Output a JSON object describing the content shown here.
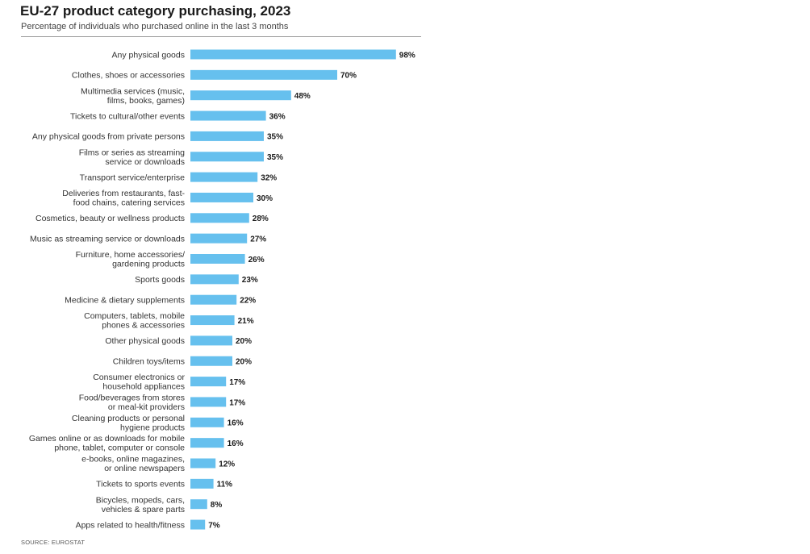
{
  "title": "EU-27 product category purchasing, 2023",
  "subtitle": "Percentage of individuals who purchased online in the last 3 months",
  "source": "SOURCE: EUROSTAT",
  "colors": {
    "bar": "#66c0ee",
    "label": "#333333",
    "value": "#1a1a1a"
  },
  "chart_data": {
    "type": "bar",
    "orientation": "horizontal",
    "unit": "%",
    "xlim": [
      0,
      100
    ],
    "grid": false,
    "categories": [
      [
        "Any physical goods"
      ],
      [
        "Clothes, shoes or accessories"
      ],
      [
        "Multimedia services (music,",
        "films, books, games)"
      ],
      [
        "Tickets to cultural/other events"
      ],
      [
        "Any physical goods from private persons"
      ],
      [
        "Films or series as streaming",
        "service or downloads"
      ],
      [
        "Transport service/enterprise"
      ],
      [
        "Deliveries from restaurants, fast-",
        "food chains, catering services"
      ],
      [
        "Cosmetics, beauty or wellness products"
      ],
      [
        "Music as streaming service or downloads"
      ],
      [
        "Furniture, home accessories/",
        "gardening products"
      ],
      [
        "Sports goods"
      ],
      [
        "Medicine & dietary supplements"
      ],
      [
        "Computers, tablets, mobile",
        "phones & accessories"
      ],
      [
        "Other physical goods"
      ],
      [
        "Children toys/items"
      ],
      [
        "Consumer electronics or",
        "household appliances"
      ],
      [
        "Food/beverages from stores",
        "or meal-kit providers"
      ],
      [
        "Cleaning products or personal",
        "hygiene products"
      ],
      [
        "Games online or as downloads for mobile",
        "phone, tablet, computer or console"
      ],
      [
        "e-books, online magazines,",
        "or online newspapers"
      ],
      [
        "Tickets to sports events"
      ],
      [
        "Bicycles, mopeds, cars,",
        "vehicles & spare parts"
      ],
      [
        "Apps related to health/fitness"
      ]
    ],
    "values": [
      98,
      70,
      48,
      36,
      35,
      35,
      32,
      30,
      28,
      27,
      26,
      23,
      22,
      21,
      20,
      20,
      17,
      17,
      16,
      16,
      12,
      11,
      8,
      7
    ],
    "value_labels": [
      "98%",
      "70%",
      "48%",
      "36%",
      "35%",
      "35%",
      "32%",
      "30%",
      "28%",
      "27%",
      "26%",
      "23%",
      "22%",
      "21%",
      "20%",
      "20%",
      "17%",
      "17%",
      "16%",
      "16%",
      "12%",
      "11%",
      "8%",
      "7%"
    ]
  }
}
